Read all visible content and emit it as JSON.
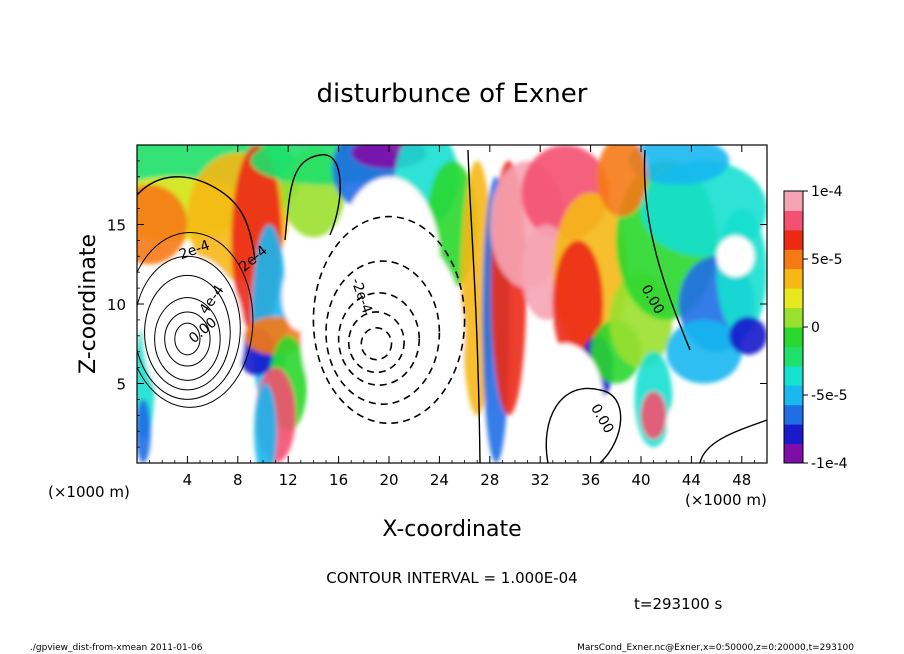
{
  "chart_data": {
    "type": "heatmap",
    "title": "disturbunce of Exner",
    "xlabel": "X-coordinate",
    "ylabel": "Z-coordinate",
    "x_unit": "(×1000 m)",
    "y_unit": "(×1000 m)",
    "xlim": [
      0,
      50
    ],
    "ylim": [
      0,
      20
    ],
    "x_ticks": [
      4,
      8,
      12,
      16,
      20,
      24,
      28,
      32,
      36,
      40,
      44,
      48
    ],
    "y_ticks": [
      5,
      10,
      15
    ],
    "colorbar": {
      "range": [
        -0.0001,
        0.0001
      ],
      "tick_values": [
        0.0001,
        5e-05,
        0,
        -5e-05,
        -0.0001
      ],
      "tick_labels": [
        "1e-4",
        "5e-5",
        "0",
        "-5e-5",
        "-1e-4"
      ],
      "colors": [
        "#7f0ea8",
        "#1a1acc",
        "#1f6ee6",
        "#1ab7f0",
        "#16e0d0",
        "#1ee06a",
        "#2ad82e",
        "#9ae02e",
        "#e8e81e",
        "#f6b814",
        "#f67a14",
        "#ec2a14",
        "#f45070",
        "#f6a4b4"
      ]
    },
    "contour_interval": "1.000E-04",
    "contour_labels": [
      "2e-4",
      "4e-4",
      "-2e-4",
      "0.00",
      "0.00",
      "0.00",
      "2e-4"
    ],
    "time_label": "t=293100 s"
  },
  "contour_note": "CONTOUR INTERVAL = 1.000E-04",
  "footer": {
    "left": "./gpview_dist-from-xmean  2011-01-06",
    "right": "MarsCond_Exner.nc@Exner,x=0:50000,z=0:20000,t=293100"
  }
}
